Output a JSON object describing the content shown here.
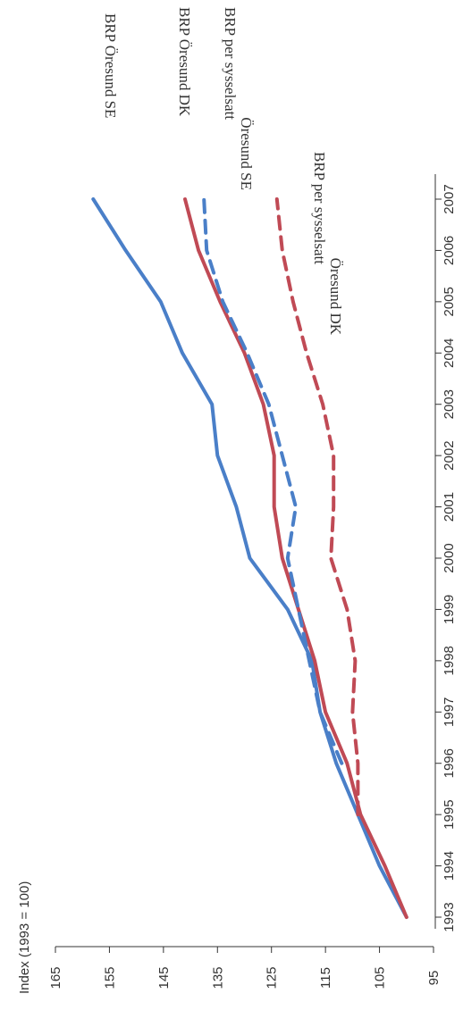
{
  "chart_data": {
    "type": "line",
    "ylabel": "Index (1993 = 100)",
    "xlabel": "",
    "ylim": [
      95,
      165
    ],
    "yticks": [
      95,
      105,
      115,
      125,
      135,
      145,
      155,
      165
    ],
    "x": [
      1993,
      1994,
      1995,
      1996,
      1997,
      1998,
      1999,
      2000,
      2001,
      2002,
      2003,
      2004,
      2005,
      2006,
      2007
    ],
    "xtick_labels": [
      "1993",
      "1994",
      "1995",
      "1996",
      "1997",
      "1998",
      "1999",
      "2000",
      "2001",
      "2002",
      "2003",
      "2004",
      "2005",
      "2006",
      "2007"
    ],
    "grid": false,
    "series": [
      {
        "name": "BRP Öresund SE",
        "color": "#4a7fc8",
        "dash": "solid",
        "values": [
          100,
          105,
          109,
          113,
          116,
          117.5,
          122,
          129,
          131.5,
          135,
          136,
          141.5,
          145.5,
          152,
          158
        ]
      },
      {
        "name": "BRP Öresund DK",
        "color": "#c04a55",
        "dash": "solid",
        "values": [
          100,
          104,
          108.5,
          111,
          115,
          117,
          120,
          123,
          124.5,
          124.5,
          126.5,
          130,
          134.5,
          138.5,
          141
        ]
      },
      {
        "name": "BRP per sysselsatt Öresund SE",
        "color": "#4a7fc8",
        "dash": "dashed",
        "values": [
          null,
          null,
          null,
          112,
          116,
          118,
          120,
          122,
          120.5,
          123,
          125.5,
          129.5,
          134,
          137,
          137.5
        ]
      },
      {
        "name": "BRP per sysselsatt Öresund DK",
        "color": "#c04a55",
        "dash": "dashed",
        "values": [
          null,
          null,
          109,
          109,
          110,
          109.5,
          111,
          114,
          113.5,
          113.5,
          115.5,
          118.5,
          121,
          123,
          124
        ]
      }
    ],
    "series_labels": [
      [
        "BRP Öresund SE"
      ],
      [
        "BRP Öresund DK"
      ],
      [
        "BRP per sysselsatt",
        "Öresund SE"
      ],
      [
        "BRP per sysselsatt",
        "Öresund DK"
      ]
    ]
  }
}
